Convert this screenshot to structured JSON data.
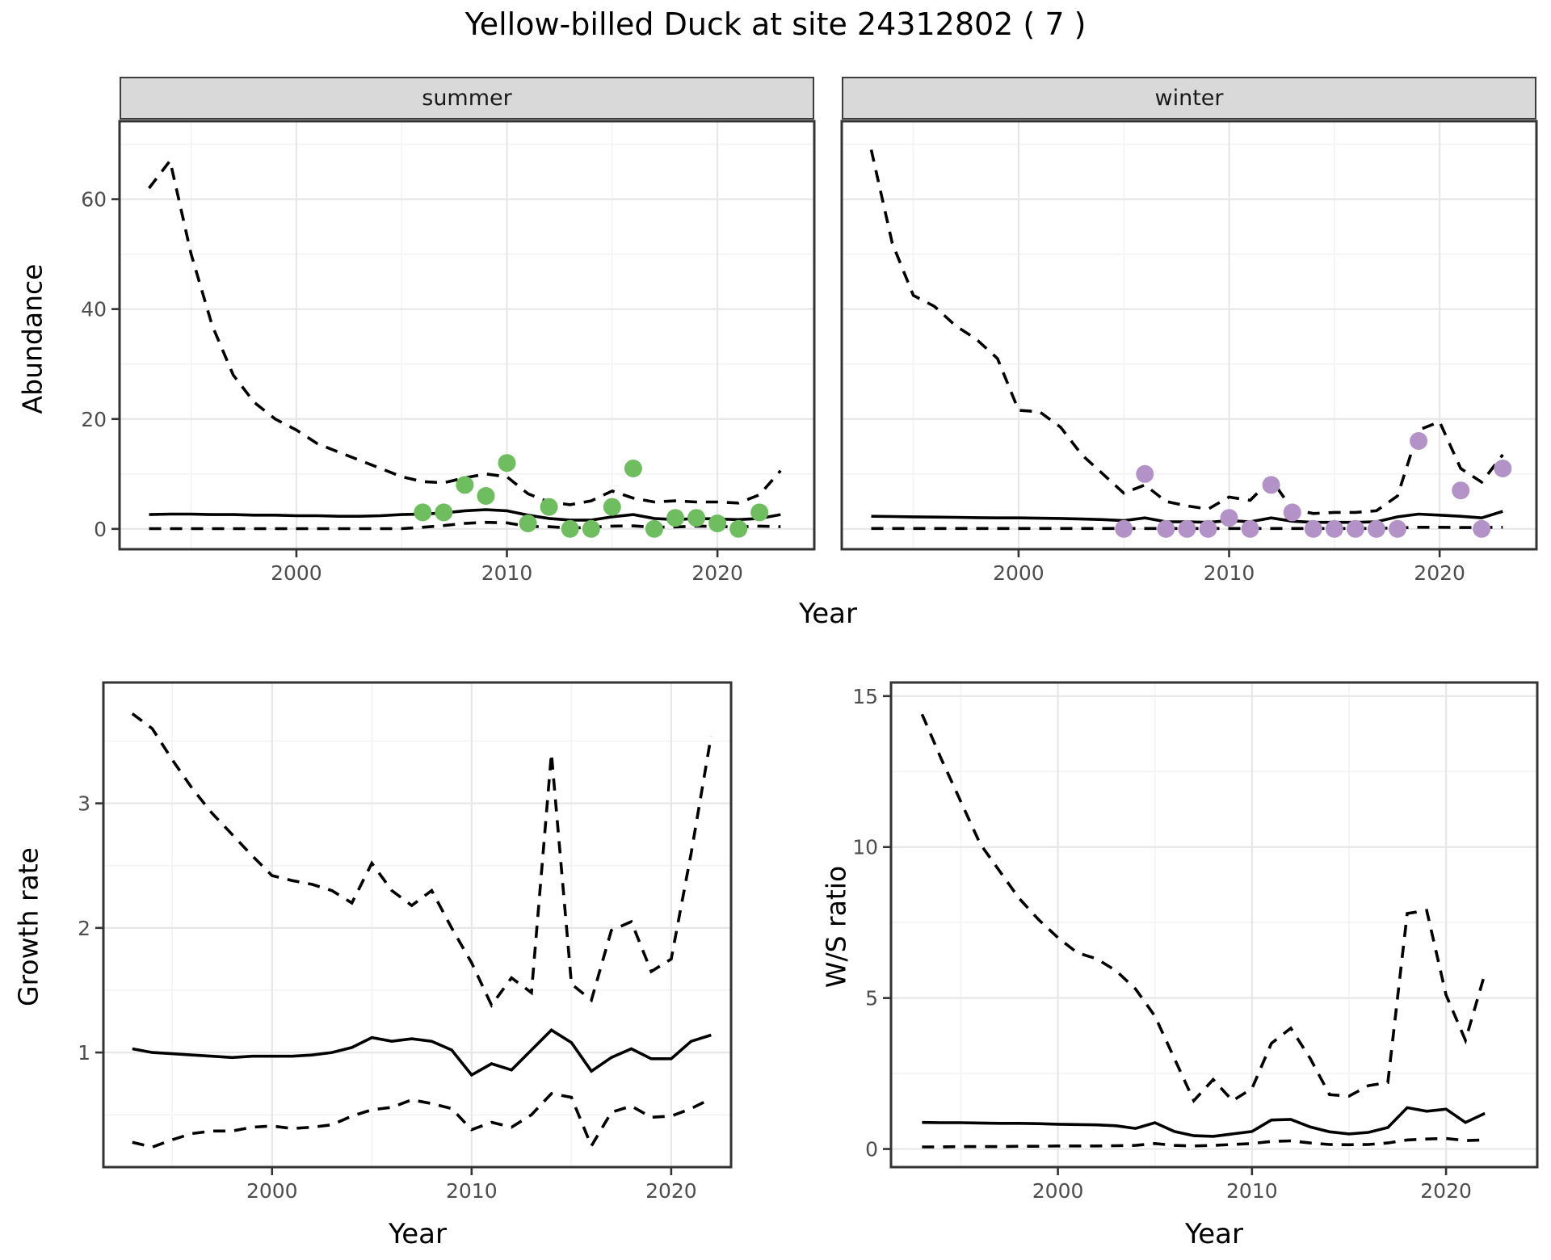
{
  "title": "Yellow-billed Duck at site 24312802 ( 7 )",
  "facets": {
    "summer": "summer",
    "winter": "winter"
  },
  "axis_titles": {
    "abundance": "Abundance",
    "growth": "Growth rate",
    "ws": "W/S ratio",
    "year": "Year"
  },
  "colors": {
    "summer_point": "#6ebe5f",
    "winter_point": "#b292c7",
    "line": "#000000",
    "axis_text": "#4d4d4d",
    "strip_bg": "#d9d9d9",
    "grid_major": "#e7e7e7",
    "grid_minor": "#f3f3f3",
    "panel_border": "#333333"
  },
  "chart_data": [
    {
      "id": "abundance-summer",
      "type": "line",
      "facet_label": "summer",
      "xlabel": "Year",
      "ylabel": "Abundance",
      "x_ticks": [
        2000,
        2010,
        2020
      ],
      "y_ticks": [
        0,
        20,
        40,
        60
      ],
      "xlim": [
        1991.6,
        2024.6
      ],
      "ylim": [
        -3.7,
        74.2
      ],
      "grid": true,
      "legend": "none",
      "x": [
        1993,
        1994,
        1995,
        1996,
        1997,
        1998,
        1999,
        2000,
        2001,
        2002,
        2003,
        2004,
        2005,
        2006,
        2007,
        2008,
        2009,
        2010,
        2011,
        2012,
        2013,
        2014,
        2015,
        2016,
        2017,
        2018,
        2019,
        2020,
        2021,
        2022,
        2023
      ],
      "series": [
        {
          "name": "upper_ci",
          "style": "dashed",
          "values": [
            62,
            67,
            50,
            37,
            28,
            23,
            20,
            18,
            15.5,
            14,
            12.5,
            11,
            9.5,
            8.6,
            8.4,
            9.3,
            10,
            9.5,
            6.4,
            4.9,
            4.4,
            5.1,
            6.9,
            5.6,
            4.9,
            5.1,
            4.9,
            4.9,
            4.7,
            6.2,
            10.6
          ]
        },
        {
          "name": "median",
          "style": "solid",
          "values": [
            2.6,
            2.7,
            2.7,
            2.6,
            2.6,
            2.5,
            2.5,
            2.4,
            2.4,
            2.3,
            2.3,
            2.4,
            2.6,
            2.7,
            2.9,
            3.3,
            3.5,
            3.3,
            2.5,
            1.9,
            1.6,
            1.6,
            2.2,
            2.6,
            1.9,
            1.7,
            1.9,
            1.8,
            1.7,
            1.9,
            2.6
          ]
        },
        {
          "name": "lower_ci",
          "style": "dashed",
          "values": [
            0.05,
            0.05,
            0.05,
            0.05,
            0.05,
            0.05,
            0.05,
            0.05,
            0.05,
            0.05,
            0.05,
            0.05,
            0.05,
            0.3,
            0.6,
            1.0,
            1.2,
            1.1,
            0.45,
            0.4,
            0.15,
            0.3,
            0.5,
            0.55,
            0.3,
            0.35,
            0.5,
            0.45,
            0.35,
            0.5,
            0.4
          ]
        }
      ],
      "points": {
        "name": "observed-counts-summer",
        "color": "#6ebe5f",
        "data": [
          [
            2006,
            3
          ],
          [
            2007,
            3
          ],
          [
            2008,
            8
          ],
          [
            2009,
            6
          ],
          [
            2010,
            12
          ],
          [
            2011,
            1
          ],
          [
            2012,
            4
          ],
          [
            2013,
            0
          ],
          [
            2014,
            0
          ],
          [
            2015,
            4
          ],
          [
            2016,
            11
          ],
          [
            2017,
            0
          ],
          [
            2018,
            2
          ],
          [
            2019,
            2
          ],
          [
            2020,
            1
          ],
          [
            2021,
            0
          ],
          [
            2022,
            3
          ]
        ]
      }
    },
    {
      "id": "abundance-winter",
      "type": "line",
      "facet_label": "winter",
      "xlabel": "Year",
      "ylabel": "Abundance",
      "x_ticks": [
        2000,
        2010,
        2020
      ],
      "y_ticks": [
        0,
        20,
        40,
        60
      ],
      "xlim": [
        1991.6,
        2024.6
      ],
      "ylim": [
        -3.7,
        74.2
      ],
      "grid": true,
      "legend": "none",
      "x": [
        1993,
        1994,
        1995,
        1996,
        1997,
        1998,
        1999,
        2000,
        2001,
        2002,
        2003,
        2004,
        2005,
        2006,
        2007,
        2008,
        2009,
        2010,
        2011,
        2012,
        2013,
        2014,
        2015,
        2016,
        2017,
        2018,
        2019,
        2020,
        2021,
        2022,
        2023
      ],
      "series": [
        {
          "name": "upper_ci",
          "style": "dashed",
          "values": [
            69,
            52,
            42.5,
            40.5,
            37,
            34.5,
            31,
            21.6,
            21.3,
            18.5,
            13.5,
            10,
            6.5,
            8,
            5,
            4.2,
            3.6,
            5.8,
            5.2,
            9,
            3.6,
            2.8,
            3,
            3,
            3.3,
            6,
            18,
            19.5,
            11,
            8.5,
            13.5
          ]
        },
        {
          "name": "median",
          "style": "solid",
          "values": [
            2.3,
            2.25,
            2.2,
            2.15,
            2.1,
            2.05,
            2.0,
            2.0,
            1.95,
            1.9,
            1.8,
            1.7,
            1.5,
            2.0,
            1.3,
            1.3,
            1.2,
            1.5,
            1.3,
            2.0,
            1.4,
            1.2,
            1.2,
            1.2,
            1.3,
            2.2,
            2.7,
            2.5,
            2.3,
            2.0,
            3.2
          ]
        },
        {
          "name": "lower_ci",
          "style": "dashed",
          "values": [
            0.08,
            0.08,
            0.08,
            0.08,
            0.08,
            0.08,
            0.08,
            0.08,
            0.08,
            0.08,
            0.08,
            0.08,
            0.08,
            0.08,
            0.08,
            0.08,
            0.08,
            0.08,
            0.08,
            0.08,
            0.08,
            0.08,
            0.08,
            0.08,
            0.08,
            0.2,
            0.3,
            0.3,
            0.25,
            0.25,
            0.3
          ]
        }
      ],
      "points": {
        "name": "observed-counts-winter",
        "color": "#b292c7",
        "data": [
          [
            2005,
            0
          ],
          [
            2006,
            10
          ],
          [
            2007,
            0
          ],
          [
            2008,
            0
          ],
          [
            2009,
            0
          ],
          [
            2010,
            2
          ],
          [
            2011,
            0
          ],
          [
            2012,
            8
          ],
          [
            2013,
            3
          ],
          [
            2014,
            0
          ],
          [
            2015,
            0
          ],
          [
            2016,
            0
          ],
          [
            2017,
            0
          ],
          [
            2018,
            0
          ],
          [
            2019,
            16
          ],
          [
            2021,
            7
          ],
          [
            2022,
            0
          ],
          [
            2023,
            11
          ]
        ]
      }
    },
    {
      "id": "growth-rate",
      "type": "line",
      "xlabel": "Year",
      "ylabel": "Growth rate",
      "x_ticks": [
        2000,
        2010,
        2020
      ],
      "y_ticks": [
        1,
        2,
        3
      ],
      "xlim": [
        1991.55,
        2023.0
      ],
      "ylim": [
        0.08,
        3.97
      ],
      "grid": true,
      "legend": "none",
      "x": [
        1993,
        1994,
        1995,
        1996,
        1997,
        1998,
        1999,
        2000,
        2001,
        2002,
        2003,
        2004,
        2005,
        2006,
        2007,
        2008,
        2009,
        2010,
        2011,
        2012,
        2013,
        2014,
        2015,
        2016,
        2017,
        2018,
        2019,
        2020,
        2021,
        2022
      ],
      "series": [
        {
          "name": "upper_ci",
          "style": "dashed",
          "values": [
            3.72,
            3.6,
            3.35,
            3.12,
            2.92,
            2.75,
            2.58,
            2.42,
            2.38,
            2.35,
            2.3,
            2.2,
            2.52,
            2.3,
            2.18,
            2.3,
            2.0,
            1.72,
            1.38,
            1.6,
            1.48,
            3.4,
            1.55,
            1.42,
            1.98,
            2.05,
            1.65,
            1.75,
            2.6,
            3.54
          ]
        },
        {
          "name": "median",
          "style": "solid",
          "values": [
            1.03,
            1.0,
            0.99,
            0.98,
            0.97,
            0.96,
            0.97,
            0.97,
            0.97,
            0.98,
            1.0,
            1.04,
            1.12,
            1.09,
            1.11,
            1.09,
            1.02,
            0.82,
            0.91,
            0.86,
            1.02,
            1.18,
            1.08,
            0.85,
            0.96,
            1.03,
            0.95,
            0.95,
            1.09,
            1.14
          ]
        },
        {
          "name": "lower_ci",
          "style": "dashed",
          "values": [
            0.28,
            0.24,
            0.3,
            0.35,
            0.37,
            0.37,
            0.4,
            0.41,
            0.39,
            0.4,
            0.42,
            0.49,
            0.54,
            0.56,
            0.62,
            0.59,
            0.55,
            0.38,
            0.44,
            0.4,
            0.5,
            0.67,
            0.64,
            0.25,
            0.52,
            0.57,
            0.48,
            0.49,
            0.55,
            0.63
          ]
        }
      ]
    },
    {
      "id": "ws-ratio",
      "type": "line",
      "xlabel": "Year",
      "ylabel": "W/S ratio",
      "x_ticks": [
        2000,
        2010,
        2020
      ],
      "y_ticks": [
        0,
        5,
        10,
        15
      ],
      "xlim": [
        1991.4,
        2024.7
      ],
      "ylim": [
        -0.6,
        15.45
      ],
      "grid": true,
      "legend": "none",
      "x": [
        1993,
        1994,
        1995,
        1996,
        1997,
        1998,
        1999,
        2000,
        2001,
        2002,
        2003,
        2004,
        2005,
        2006,
        2007,
        2008,
        2009,
        2010,
        2011,
        2012,
        2013,
        2014,
        2015,
        2016,
        2017,
        2018,
        2019,
        2020,
        2021,
        2022
      ],
      "series": [
        {
          "name": "upper_ci",
          "style": "dashed",
          "values": [
            14.4,
            12.9,
            11.5,
            10.1,
            9.2,
            8.3,
            7.6,
            7.0,
            6.5,
            6.3,
            5.9,
            5.3,
            4.4,
            3.0,
            1.6,
            2.3,
            1.6,
            2.0,
            3.5,
            4.0,
            3.0,
            1.8,
            1.75,
            2.1,
            2.2,
            7.8,
            7.9,
            5.1,
            3.6,
            5.8
          ]
        },
        {
          "name": "median",
          "style": "solid",
          "values": [
            0.88,
            0.87,
            0.87,
            0.86,
            0.85,
            0.85,
            0.84,
            0.82,
            0.81,
            0.8,
            0.77,
            0.68,
            0.87,
            0.58,
            0.44,
            0.42,
            0.5,
            0.58,
            0.96,
            0.98,
            0.73,
            0.57,
            0.5,
            0.55,
            0.71,
            1.37,
            1.25,
            1.32,
            0.88,
            1.18
          ]
        },
        {
          "name": "lower_ci",
          "style": "dashed",
          "values": [
            0.07,
            0.07,
            0.08,
            0.08,
            0.08,
            0.09,
            0.09,
            0.1,
            0.1,
            0.1,
            0.11,
            0.12,
            0.18,
            0.12,
            0.1,
            0.12,
            0.15,
            0.18,
            0.25,
            0.27,
            0.2,
            0.15,
            0.14,
            0.15,
            0.2,
            0.3,
            0.33,
            0.35,
            0.28,
            0.3
          ]
        }
      ]
    }
  ]
}
